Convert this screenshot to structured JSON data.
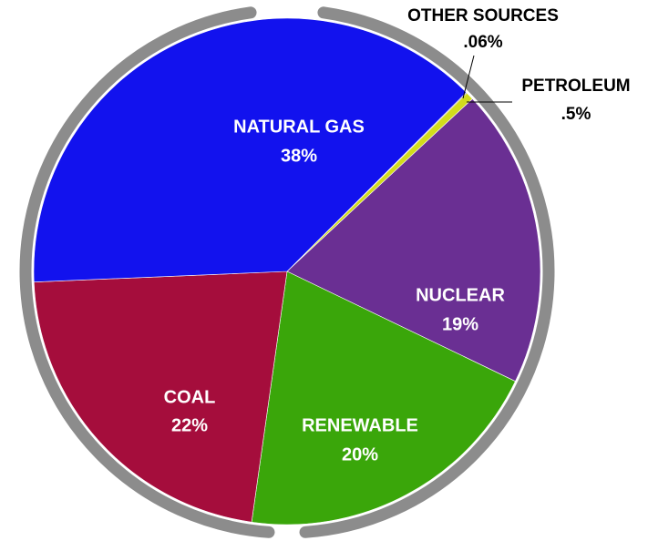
{
  "chart_data": {
    "type": "pie",
    "categories": [
      "OTHER SOURCES",
      "PETROLEUM",
      "NUCLEAR",
      "RENEWABLE",
      "COAL",
      "NATURAL GAS"
    ],
    "values": [
      0.06,
      0.5,
      19,
      20,
      22,
      38
    ],
    "value_labels": [
      ".06%",
      ".5%",
      "19%",
      "20%",
      "22%",
      "38%"
    ],
    "colors": [
      "#3a3a3a",
      "#d2dc1c",
      "#6a2f93",
      "#3aa60a",
      "#a50d3c",
      "#1212ee"
    ]
  }
}
